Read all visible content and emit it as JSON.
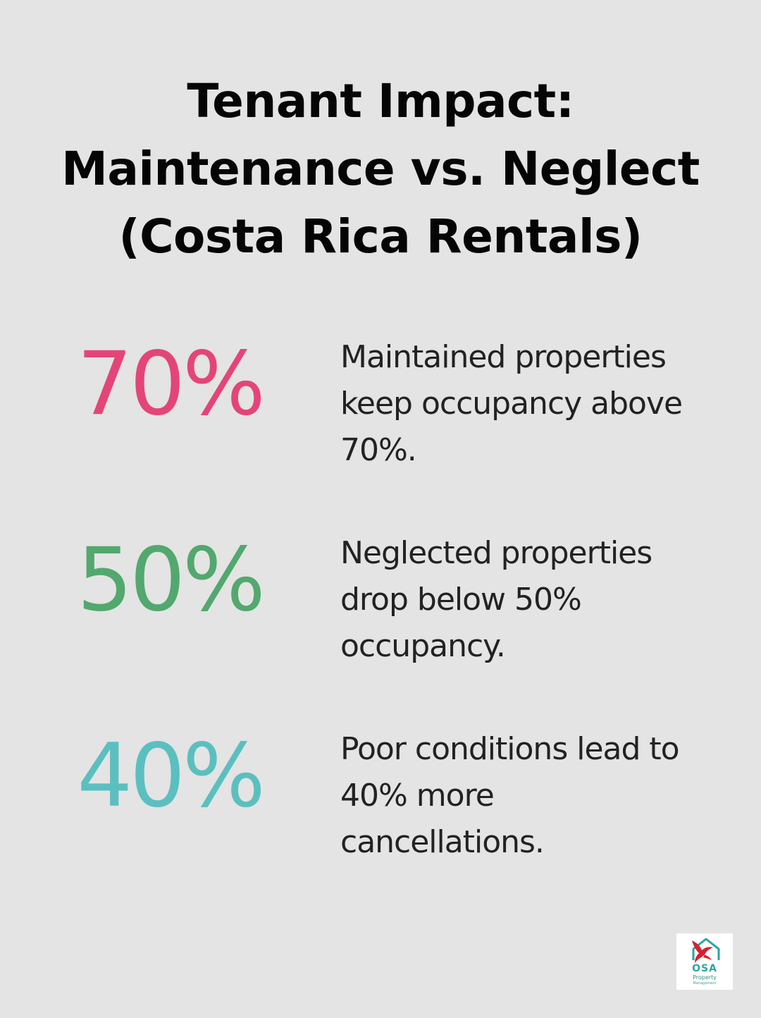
{
  "title": {
    "lines": [
      "Tenant Impact:",
      "Maintenance vs. Neglect",
      "(Costa Rica Rentals)"
    ]
  },
  "stats": [
    {
      "value": "70%",
      "color": "#e44578",
      "lines": [
        "Maintained properties",
        "keep occupancy above",
        "70%."
      ]
    },
    {
      "value": "50%",
      "color": "#52a86e",
      "lines": [
        "Neglected properties",
        "drop below 50%",
        "occupancy."
      ]
    },
    {
      "value": "40%",
      "color": "#5bbfc0",
      "lines": [
        "Poor conditions lead to",
        "40% more",
        "cancellations."
      ]
    }
  ],
  "logo": {
    "word": "OSA",
    "sub1": "Property",
    "sub2": "Management",
    "brand_color": "#2aa5a0",
    "accent_color": "#d8202f"
  }
}
